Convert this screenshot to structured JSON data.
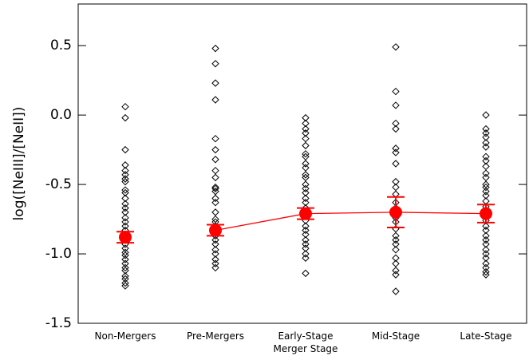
{
  "chart_data": {
    "type": "scatter",
    "y_label": "log([NeIII]/[NeII])",
    "categories": [
      "Non-Mergers",
      "Pre-Mergers",
      "Early-Stage\nMerger Stage",
      "Mid-Stage",
      "Late-Stage"
    ],
    "points": [
      [
        0.06,
        -0.02,
        -0.25,
        -0.36,
        -0.4,
        -0.43,
        -0.46,
        -0.48,
        -0.54,
        -0.56,
        -0.6,
        -0.64,
        -0.67,
        -0.7,
        -0.74,
        -0.77,
        -0.8,
        -0.83,
        -0.87,
        -0.9,
        -0.93,
        -0.96,
        -0.99,
        -1.01,
        -1.04,
        -1.07,
        -1.1,
        -1.12,
        -1.16,
        -1.18,
        -1.21,
        -1.23
      ],
      [
        0.48,
        0.37,
        0.23,
        0.11,
        -0.17,
        -0.25,
        -0.32,
        -0.4,
        -0.45,
        -0.52,
        -0.53,
        -0.55,
        -0.6,
        -0.63,
        -0.7,
        -0.75,
        -0.77,
        -0.8,
        -0.83,
        -0.87,
        -0.9,
        -0.93,
        -0.97,
        -1.0,
        -1.04,
        -1.07,
        -1.1
      ],
      [
        -0.02,
        -0.06,
        -0.1,
        -0.13,
        -0.17,
        -0.22,
        -0.28,
        -0.3,
        -0.35,
        -0.38,
        -0.43,
        -0.45,
        -0.5,
        -0.53,
        -0.56,
        -0.6,
        -0.63,
        -0.67,
        -0.7,
        -0.73,
        -0.76,
        -0.8,
        -0.83,
        -0.86,
        -0.9,
        -0.93,
        -0.96,
        -1.0,
        -1.03,
        -1.14
      ],
      [
        0.49,
        0.17,
        0.07,
        -0.06,
        -0.1,
        -0.24,
        -0.27,
        -0.35,
        -0.48,
        -0.52,
        -0.57,
        -0.63,
        -0.67,
        -0.7,
        -0.74,
        -0.77,
        -0.82,
        -0.87,
        -0.9,
        -0.93,
        -0.97,
        -1.03,
        -1.07,
        -1.12,
        -1.15,
        -1.27
      ],
      [
        0.0,
        -0.1,
        -0.13,
        -0.16,
        -0.2,
        -0.23,
        -0.3,
        -0.33,
        -0.37,
        -0.42,
        -0.45,
        -0.5,
        -0.52,
        -0.55,
        -0.58,
        -0.62,
        -0.66,
        -0.7,
        -0.73,
        -0.76,
        -0.8,
        -0.83,
        -0.87,
        -0.9,
        -0.93,
        -0.97,
        -1.0,
        -1.03,
        -1.07,
        -1.1,
        -1.13,
        -1.15
      ]
    ],
    "point_color": "#000000",
    "means": [
      -0.88,
      -0.83,
      -0.71,
      -0.7,
      -0.71
    ],
    "errors": [
      0.04,
      0.04,
      0.04,
      0.11,
      0.065
    ],
    "mean_color": "#ff0000",
    "connect": [
      false,
      true,
      true,
      true,
      true
    ],
    "ylim": [
      -1.5,
      0.8
    ],
    "yticks": [
      0.5,
      {
        "value": 0,
        "label": "0.0"
      },
      -0.5,
      {
        "value": -1,
        "label": "-1.0"
      },
      -1.5
    ]
  }
}
